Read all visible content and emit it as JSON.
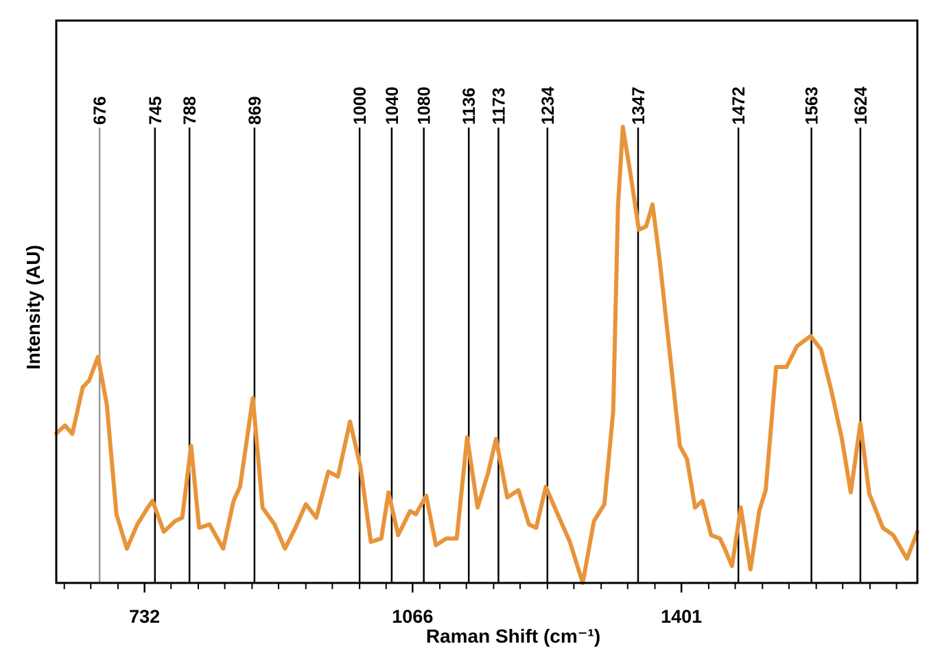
{
  "chart_data": {
    "type": "line",
    "xlabel": "Raman Shift (cm⁻¹)",
    "ylabel": "Intensity (AU)",
    "xlim": [
      622,
      1695
    ],
    "ylim": [
      0,
      100
    ],
    "xticks": [
      732,
      1066,
      1401
    ],
    "xminor_ticks": [
      632,
      665,
      699,
      765,
      799,
      832,
      866,
      899,
      933,
      966,
      1000,
      1033,
      1100,
      1133,
      1167,
      1200,
      1234,
      1267,
      1301,
      1334,
      1368,
      1435,
      1468,
      1502,
      1535,
      1569,
      1602,
      1636,
      1669
    ],
    "peaks": [
      676,
      745,
      788,
      869,
      1000,
      1040,
      1080,
      1136,
      1173,
      1234,
      1347,
      1472,
      1563,
      1624
    ],
    "peak_colors": [
      "#999999",
      "#000000",
      "#000000",
      "#000000",
      "#000000",
      "#000000",
      "#000000",
      "#000000",
      "#000000",
      "#000000",
      "#000000",
      "#000000",
      "#000000",
      "#000000"
    ],
    "x": [
      622,
      633,
      642,
      655,
      663,
      674,
      685,
      697,
      710,
      723,
      736,
      742,
      756,
      770,
      779,
      790,
      800,
      813,
      830,
      843,
      851,
      867,
      879,
      894,
      907,
      920,
      933,
      946,
      961,
      973,
      988,
      1001,
      1014,
      1027,
      1036,
      1048,
      1063,
      1070,
      1083,
      1095,
      1108,
      1121,
      1134,
      1147,
      1160,
      1170,
      1184,
      1198,
      1211,
      1220,
      1232,
      1245,
      1262,
      1278,
      1292,
      1305,
      1316,
      1322,
      1328,
      1337,
      1348,
      1357,
      1365,
      1374,
      1387,
      1399,
      1408,
      1418,
      1427,
      1438,
      1449,
      1455,
      1464,
      1475,
      1487,
      1498,
      1506,
      1519,
      1532,
      1545,
      1562,
      1575,
      1588,
      1601,
      1612,
      1624,
      1635,
      1652,
      1665,
      1682,
      1695
    ],
    "series": [
      {
        "color": "#e8943a",
        "values": [
          26.6,
          28.0,
          26.5,
          34.8,
          36.0,
          40.2,
          31.7,
          12.2,
          6.1,
          10.4,
          13.4,
          14.6,
          9.1,
          11.0,
          11.6,
          24.4,
          9.8,
          10.4,
          6.1,
          14.6,
          17.1,
          32.9,
          13.4,
          10.4,
          6.1,
          9.8,
          14.0,
          11.6,
          19.8,
          18.9,
          28.7,
          20.7,
          7.3,
          7.9,
          16.1,
          8.5,
          12.8,
          12.2,
          15.5,
          6.7,
          7.9,
          7.9,
          25.9,
          13.4,
          19.5,
          25.6,
          15.2,
          16.5,
          10.4,
          9.8,
          17.1,
          12.8,
          7.3,
          0,
          11.0,
          14.0,
          30.5,
          67.1,
          81.1,
          73.2,
          62.8,
          63.4,
          67.3,
          57.3,
          40.2,
          24.4,
          22.0,
          13.4,
          14.6,
          8.5,
          7.9,
          6.1,
          3.0,
          13.4,
          2.4,
          12.8,
          16.5,
          38.4,
          38.4,
          42.1,
          43.9,
          41.5,
          34.1,
          25.6,
          16.1,
          28.4,
          15.9,
          9.8,
          8.5,
          4.3,
          9.1
        ]
      }
    ]
  }
}
